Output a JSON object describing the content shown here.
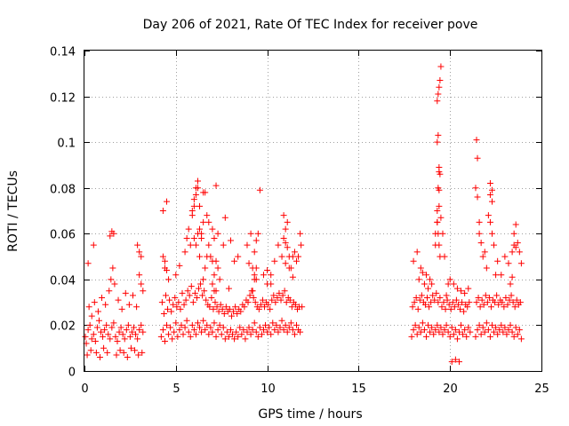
{
  "chart_data": {
    "type": "scatter",
    "title": "Day 206 of 2021, Rate Of TEC Index for receiver pove",
    "xlabel": "GPS time / hours",
    "ylabel": "ROTI / TECUs",
    "xlim": [
      0,
      25
    ],
    "ylim": [
      0,
      0.14
    ],
    "xticks": [
      0,
      5,
      10,
      15,
      20,
      25
    ],
    "xtick_labels": [
      "0",
      "5",
      "10",
      "15",
      "20",
      "25"
    ],
    "yticks": [
      0,
      0.02,
      0.04,
      0.06,
      0.08,
      0.1,
      0.12,
      0.14
    ],
    "ytick_labels": [
      "0",
      "0.02",
      "0.04",
      "0.06",
      "0.08",
      "0.1",
      "0.12",
      "0.14"
    ],
    "grid": true,
    "marker": "+",
    "color": "#ff0000",
    "series": [
      {
        "name": "ROTI",
        "x": [
          0.05,
          0.1,
          0.2,
          0.3,
          0.4,
          0.5,
          0.6,
          0.7,
          0.8,
          0.9,
          1.0,
          1.1,
          1.2,
          1.3,
          1.4,
          1.5,
          1.6,
          1.7,
          1.8,
          1.9,
          2.0,
          2.1,
          2.2,
          2.3,
          2.4,
          2.5,
          2.6,
          2.7,
          2.8,
          2.9,
          3.0,
          3.1,
          3.2,
          0.25,
          0.4,
          0.55,
          0.75,
          0.95,
          1.15,
          1.35,
          1.45,
          1.55,
          1.65,
          1.85,
          2.05,
          2.25,
          2.45,
          2.65,
          2.85,
          3.0,
          3.1,
          3.2,
          0.15,
          0.35,
          0.65,
          0.85,
          1.05,
          1.25,
          1.75,
          1.95,
          2.15,
          2.35,
          2.55,
          2.75,
          2.95,
          3.15,
          0.2,
          0.5,
          1.4,
          1.5,
          1.6,
          2.9,
          3.0,
          3.1,
          4.2,
          4.3,
          4.4,
          4.5,
          4.6,
          4.7,
          4.8,
          4.9,
          5.0,
          5.1,
          5.2,
          5.3,
          5.4,
          5.5,
          5.6,
          5.7,
          5.8,
          5.9,
          6.0,
          6.1,
          6.2,
          6.3,
          6.4,
          6.5,
          6.6,
          6.7,
          6.8,
          6.9,
          7.0,
          7.1,
          7.2,
          7.3,
          7.4,
          7.5,
          7.6,
          7.7,
          7.8,
          7.9,
          8.0,
          8.1,
          8.2,
          8.3,
          8.4,
          8.5,
          8.6,
          8.7,
          8.8,
          8.9,
          9.0,
          9.1,
          9.2,
          9.3,
          9.4,
          9.5,
          9.6,
          9.7,
          9.8,
          9.9,
          10.0,
          10.1,
          10.2,
          10.3,
          10.4,
          10.5,
          10.6,
          10.7,
          10.8,
          10.9,
          11.0,
          11.1,
          11.2,
          11.3,
          11.4,
          11.5,
          11.6,
          11.7,
          11.8,
          11.9,
          4.25,
          4.35,
          4.45,
          4.55,
          4.65,
          4.75,
          4.85,
          4.95,
          5.05,
          5.15,
          5.25,
          5.35,
          5.45,
          5.55,
          5.65,
          5.75,
          5.85,
          5.95,
          6.05,
          6.15,
          6.25,
          6.35,
          6.45,
          6.55,
          6.65,
          6.75,
          6.85,
          6.95,
          7.05,
          7.15,
          7.25,
          7.35,
          7.45,
          7.55,
          7.65,
          7.75,
          7.85,
          7.95,
          8.05,
          8.15,
          8.25,
          8.35,
          8.45,
          8.55,
          8.65,
          8.75,
          8.85,
          8.95,
          9.05,
          9.15,
          9.25,
          9.35,
          9.45,
          9.55,
          9.65,
          9.75,
          9.85,
          9.95,
          10.05,
          10.15,
          10.25,
          10.35,
          10.45,
          10.55,
          10.65,
          10.75,
          10.85,
          10.95,
          11.05,
          11.15,
          11.25,
          11.35,
          11.45,
          11.55,
          11.65,
          11.75,
          11.85,
          4.3,
          4.4,
          4.5,
          4.3,
          4.4,
          5.5,
          5.6,
          5.7,
          5.8,
          5.9,
          6.0,
          6.1,
          6.2,
          6.3,
          6.4,
          6.5,
          6.6,
          6.7,
          6.8,
          6.9,
          7.0,
          7.1,
          7.2,
          7.3,
          7.4,
          7.0,
          7.1,
          7.2,
          6.5,
          6.6,
          6.7,
          6.8,
          5.9,
          6.0,
          6.1,
          6.2,
          6.3,
          6.0,
          6.1,
          6.2,
          6.3,
          6.4,
          6.5,
          7.2,
          7.3,
          7.6,
          7.7,
          8.0,
          8.2,
          8.4,
          8.9,
          9.0,
          9.1,
          9.2,
          9.3,
          9.4,
          9.5,
          9.6,
          9.2,
          9.3,
          9.4,
          10.0,
          10.2,
          10.4,
          10.6,
          10.8,
          11.0,
          11.2,
          11.4,
          11.5,
          11.6,
          11.7,
          11.8,
          10.9,
          11.0,
          11.1,
          10.9,
          11.0,
          11.1,
          11.2,
          11.3,
          11.4,
          9.8,
          10.0,
          10.2,
          4.5,
          4.6,
          5.0,
          5.2,
          7.0,
          7.1,
          7.9,
          9.3,
          9.4,
          17.9,
          18.0,
          18.1,
          18.2,
          18.3,
          18.4,
          18.5,
          18.6,
          18.7,
          18.8,
          18.9,
          19.0,
          19.1,
          19.2,
          19.3,
          19.4,
          19.5,
          19.6,
          19.7,
          19.8,
          19.9,
          20.0,
          20.1,
          20.2,
          20.3,
          20.4,
          20.5,
          20.6,
          20.7,
          20.8,
          20.9,
          21.0,
          21.1,
          17.95,
          18.05,
          18.15,
          18.25,
          18.35,
          18.45,
          18.55,
          18.65,
          18.75,
          18.85,
          18.95,
          19.05,
          19.15,
          19.25,
          19.35,
          19.45,
          19.55,
          19.65,
          19.75,
          19.85,
          19.95,
          20.05,
          20.15,
          20.25,
          20.35,
          20.45,
          20.55,
          20.65,
          20.75,
          20.85,
          20.95,
          21.05,
          18.0,
          18.2,
          18.4,
          18.5,
          18.3,
          18.6,
          18.8,
          19.0,
          19.2,
          19.3,
          19.4,
          19.35,
          19.4,
          19.45,
          19.35,
          19.4,
          19.3,
          19.35,
          19.4,
          19.45,
          19.3,
          19.35,
          19.4,
          19.45,
          19.5,
          19.3,
          19.2,
          19.3,
          19.4,
          19.5,
          19.6,
          19.7,
          20.0,
          20.2,
          20.4,
          20.6,
          20.8,
          21.0,
          20.1,
          20.3,
          20.5,
          19.8,
          19.9,
          18.9,
          18.7,
          21.4,
          21.5,
          21.6,
          21.7,
          21.8,
          21.9,
          22.0,
          22.1,
          22.2,
          22.3,
          22.4,
          22.5,
          22.6,
          22.7,
          22.8,
          22.9,
          23.0,
          23.1,
          23.2,
          23.3,
          23.4,
          23.5,
          23.6,
          23.7,
          23.8,
          23.9,
          21.45,
          21.55,
          21.65,
          21.75,
          21.85,
          21.95,
          22.05,
          22.15,
          22.25,
          22.35,
          22.45,
          22.55,
          22.65,
          22.75,
          22.85,
          22.95,
          23.05,
          23.15,
          23.25,
          23.35,
          23.45,
          23.55,
          23.65,
          23.75,
          23.85,
          21.45,
          21.5,
          21.4,
          21.5,
          21.6,
          22.2,
          22.3,
          22.2,
          22.3,
          22.1,
          22.2,
          22.3,
          21.8,
          22.0,
          22.4,
          22.6,
          22.8,
          23.0,
          23.2,
          23.4,
          23.5,
          23.6,
          23.7,
          23.8,
          23.9,
          23.5,
          23.6,
          23.3,
          23.4,
          21.9,
          22.5,
          21.6,
          21.7
        ],
        "y": [
          0.015,
          0.012,
          0.018,
          0.02,
          0.014,
          0.016,
          0.013,
          0.019,
          0.022,
          0.017,
          0.015,
          0.018,
          0.02,
          0.016,
          0.014,
          0.019,
          0.021,
          0.015,
          0.013,
          0.017,
          0.019,
          0.016,
          0.014,
          0.018,
          0.02,
          0.015,
          0.017,
          0.019,
          0.016,
          0.014,
          0.018,
          0.02,
          0.017,
          0.028,
          0.024,
          0.03,
          0.026,
          0.032,
          0.029,
          0.035,
          0.04,
          0.045,
          0.038,
          0.031,
          0.027,
          0.034,
          0.029,
          0.033,
          0.028,
          0.042,
          0.038,
          0.035,
          0.007,
          0.009,
          0.008,
          0.006,
          0.01,
          0.008,
          0.007,
          0.009,
          0.008,
          0.006,
          0.01,
          0.009,
          0.007,
          0.008,
          0.047,
          0.055,
          0.059,
          0.061,
          0.06,
          0.055,
          0.052,
          0.05,
          0.015,
          0.018,
          0.013,
          0.02,
          0.016,
          0.019,
          0.014,
          0.017,
          0.021,
          0.015,
          0.018,
          0.02,
          0.016,
          0.019,
          0.022,
          0.017,
          0.015,
          0.02,
          0.018,
          0.016,
          0.021,
          0.019,
          0.017,
          0.022,
          0.018,
          0.02,
          0.016,
          0.019,
          0.017,
          0.021,
          0.015,
          0.018,
          0.02,
          0.016,
          0.019,
          0.014,
          0.017,
          0.015,
          0.018,
          0.016,
          0.014,
          0.017,
          0.015,
          0.019,
          0.016,
          0.018,
          0.014,
          0.017,
          0.019,
          0.016,
          0.018,
          0.021,
          0.017,
          0.015,
          0.019,
          0.016,
          0.018,
          0.02,
          0.017,
          0.019,
          0.016,
          0.021,
          0.018,
          0.02,
          0.017,
          0.019,
          0.022,
          0.018,
          0.02,
          0.017,
          0.019,
          0.021,
          0.018,
          0.016,
          0.02,
          0.018,
          0.017,
          0.028,
          0.03,
          0.025,
          0.033,
          0.027,
          0.031,
          0.026,
          0.029,
          0.032,
          0.028,
          0.03,
          0.027,
          0.034,
          0.029,
          0.031,
          0.035,
          0.033,
          0.037,
          0.03,
          0.034,
          0.032,
          0.036,
          0.038,
          0.033,
          0.035,
          0.031,
          0.029,
          0.028,
          0.032,
          0.027,
          0.03,
          0.028,
          0.026,
          0.029,
          0.027,
          0.025,
          0.028,
          0.026,
          0.027,
          0.024,
          0.026,
          0.028,
          0.025,
          0.027,
          0.026,
          0.029,
          0.028,
          0.031,
          0.03,
          0.033,
          0.035,
          0.032,
          0.03,
          0.028,
          0.027,
          0.029,
          0.031,
          0.028,
          0.03,
          0.029,
          0.027,
          0.031,
          0.033,
          0.03,
          0.032,
          0.034,
          0.031,
          0.033,
          0.035,
          0.03,
          0.032,
          0.031,
          0.028,
          0.03,
          0.029,
          0.027,
          0.028,
          0.055,
          0.05,
          0.045,
          0.074,
          0.07,
          0.048,
          0.052,
          0.058,
          0.062,
          0.055,
          0.07,
          0.075,
          0.08,
          0.083,
          0.072,
          0.06,
          0.065,
          0.078,
          0.068,
          0.055,
          0.05,
          0.062,
          0.058,
          0.048,
          0.045,
          0.04,
          0.038,
          0.042,
          0.035,
          0.04,
          0.045,
          0.05,
          0.065,
          0.068,
          0.072,
          0.077,
          0.08,
          0.062,
          0.058,
          0.055,
          0.06,
          0.05,
          0.058,
          0.078,
          0.081,
          0.06,
          0.055,
          0.067,
          0.057,
          0.048,
          0.05,
          0.055,
          0.047,
          0.06,
          0.045,
          0.052,
          0.057,
          0.06,
          0.079,
          0.035,
          0.04,
          0.045,
          0.038,
          0.042,
          0.048,
          0.055,
          0.05,
          0.047,
          0.045,
          0.05,
          0.052,
          0.048,
          0.05,
          0.06,
          0.058,
          0.062,
          0.065,
          0.068,
          0.056,
          0.054,
          0.05,
          0.045,
          0.041,
          0.042,
          0.044,
          0.038,
          0.044,
          0.04,
          0.042,
          0.046,
          0.048,
          0.035,
          0.036,
          0.042,
          0.04,
          0.015,
          0.018,
          0.02,
          0.016,
          0.019,
          0.017,
          0.021,
          0.018,
          0.015,
          0.02,
          0.017,
          0.019,
          0.016,
          0.018,
          0.02,
          0.017,
          0.019,
          0.016,
          0.018,
          0.02,
          0.017,
          0.015,
          0.019,
          0.016,
          0.018,
          0.014,
          0.017,
          0.02,
          0.016,
          0.018,
          0.015,
          0.019,
          0.017,
          0.028,
          0.03,
          0.032,
          0.027,
          0.031,
          0.033,
          0.03,
          0.029,
          0.032,
          0.028,
          0.03,
          0.033,
          0.031,
          0.034,
          0.03,
          0.032,
          0.028,
          0.03,
          0.027,
          0.031,
          0.029,
          0.027,
          0.03,
          0.028,
          0.031,
          0.029,
          0.027,
          0.03,
          0.026,
          0.029,
          0.028,
          0.03,
          0.048,
          0.052,
          0.045,
          0.043,
          0.04,
          0.038,
          0.036,
          0.038,
          0.055,
          0.065,
          0.087,
          0.103,
          0.089,
          0.086,
          0.08,
          0.072,
          0.065,
          0.06,
          0.055,
          0.05,
          0.118,
          0.121,
          0.124,
          0.127,
          0.133,
          0.1,
          0.06,
          0.07,
          0.079,
          0.067,
          0.06,
          0.05,
          0.04,
          0.038,
          0.036,
          0.035,
          0.034,
          0.036,
          0.004,
          0.005,
          0.004,
          0.033,
          0.038,
          0.04,
          0.042,
          0.015,
          0.018,
          0.02,
          0.016,
          0.019,
          0.017,
          0.021,
          0.018,
          0.015,
          0.02,
          0.017,
          0.019,
          0.016,
          0.018,
          0.02,
          0.017,
          0.019,
          0.016,
          0.018,
          0.02,
          0.017,
          0.015,
          0.019,
          0.016,
          0.018,
          0.014,
          0.03,
          0.032,
          0.028,
          0.031,
          0.029,
          0.033,
          0.03,
          0.032,
          0.028,
          0.031,
          0.03,
          0.033,
          0.029,
          0.031,
          0.03,
          0.028,
          0.032,
          0.029,
          0.031,
          0.033,
          0.03,
          0.028,
          0.031,
          0.029,
          0.03,
          0.101,
          0.093,
          0.08,
          0.076,
          0.065,
          0.082,
          0.079,
          0.077,
          0.074,
          0.068,
          0.065,
          0.06,
          0.05,
          0.045,
          0.055,
          0.048,
          0.042,
          0.05,
          0.047,
          0.052,
          0.055,
          0.054,
          0.056,
          0.052,
          0.047,
          0.06,
          0.064,
          0.038,
          0.041,
          0.052,
          0.042,
          0.06,
          0.056
        ]
      }
    ]
  }
}
